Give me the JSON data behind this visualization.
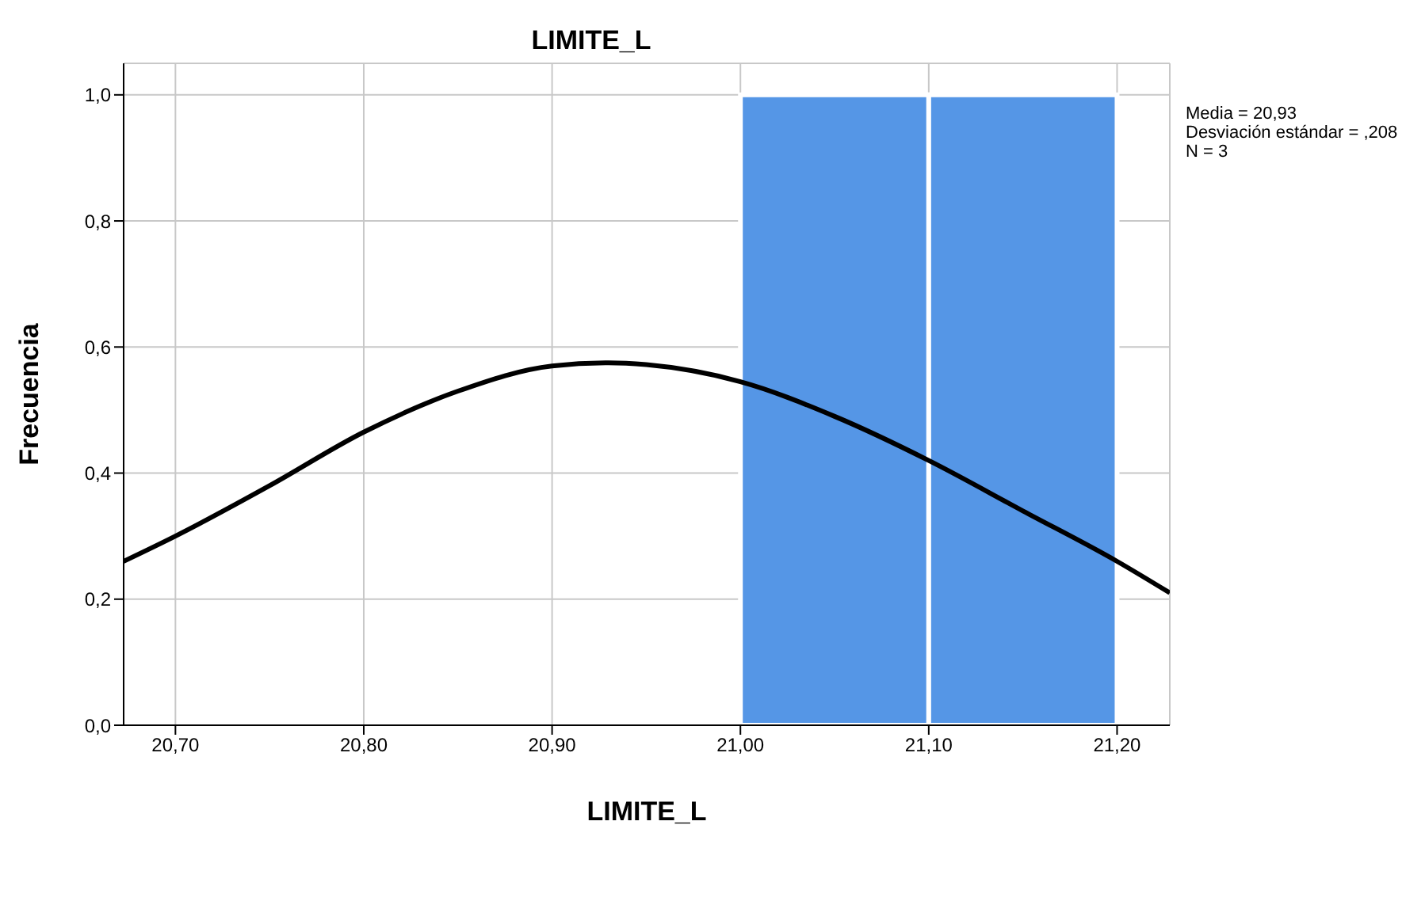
{
  "chart_data": {
    "type": "histogram",
    "title": "LIMITE_L",
    "xlabel": "LIMITE_L",
    "ylabel": "Frecuencia",
    "bins": [
      21.0,
      21.1,
      21.2
    ],
    "values": [
      1,
      1
    ],
    "color": "#5596e6",
    "series": [
      {
        "type": "line",
        "color": "#000000",
        "x": [
          20.6725,
          20.7,
          20.75,
          20.8,
          20.85,
          20.9,
          20.93,
          20.95,
          21.0,
          21.05,
          21.1,
          21.15,
          21.2,
          21.228
        ],
        "values": [
          0.26,
          0.3,
          0.38,
          0.465,
          0.53,
          0.57,
          0.575,
          0.572,
          0.545,
          0.49,
          0.42,
          0.34,
          0.26,
          0.21
        ]
      }
    ],
    "xlim": [
      20.6725,
      21.228
    ],
    "xticks": [
      {
        "value": 20.7,
        "label": "20,70"
      },
      {
        "value": 20.8,
        "label": "20,80"
      },
      {
        "value": 20.9,
        "label": "20,90"
      },
      {
        "value": 21.0,
        "label": "21,00"
      },
      {
        "value": 21.1,
        "label": "21,10"
      },
      {
        "value": 21.2,
        "label": "21,20"
      }
    ],
    "ylim": [
      0,
      1.05
    ],
    "yticks": [
      {
        "value": 0,
        "label": "0,0"
      },
      {
        "value": 0.2,
        "label": "0,2"
      },
      {
        "value": 0.4,
        "label": "0,4"
      },
      {
        "value": 0.6,
        "label": "0,6"
      },
      {
        "value": 0.8,
        "label": "0,8"
      },
      {
        "value": 1.0,
        "label": "1,0"
      }
    ],
    "grid": true,
    "marker": "none",
    "line_style": "solid",
    "annotations": [
      "Media = 20,93",
      "Desviación estándar = ,208",
      "N = 3"
    ]
  }
}
